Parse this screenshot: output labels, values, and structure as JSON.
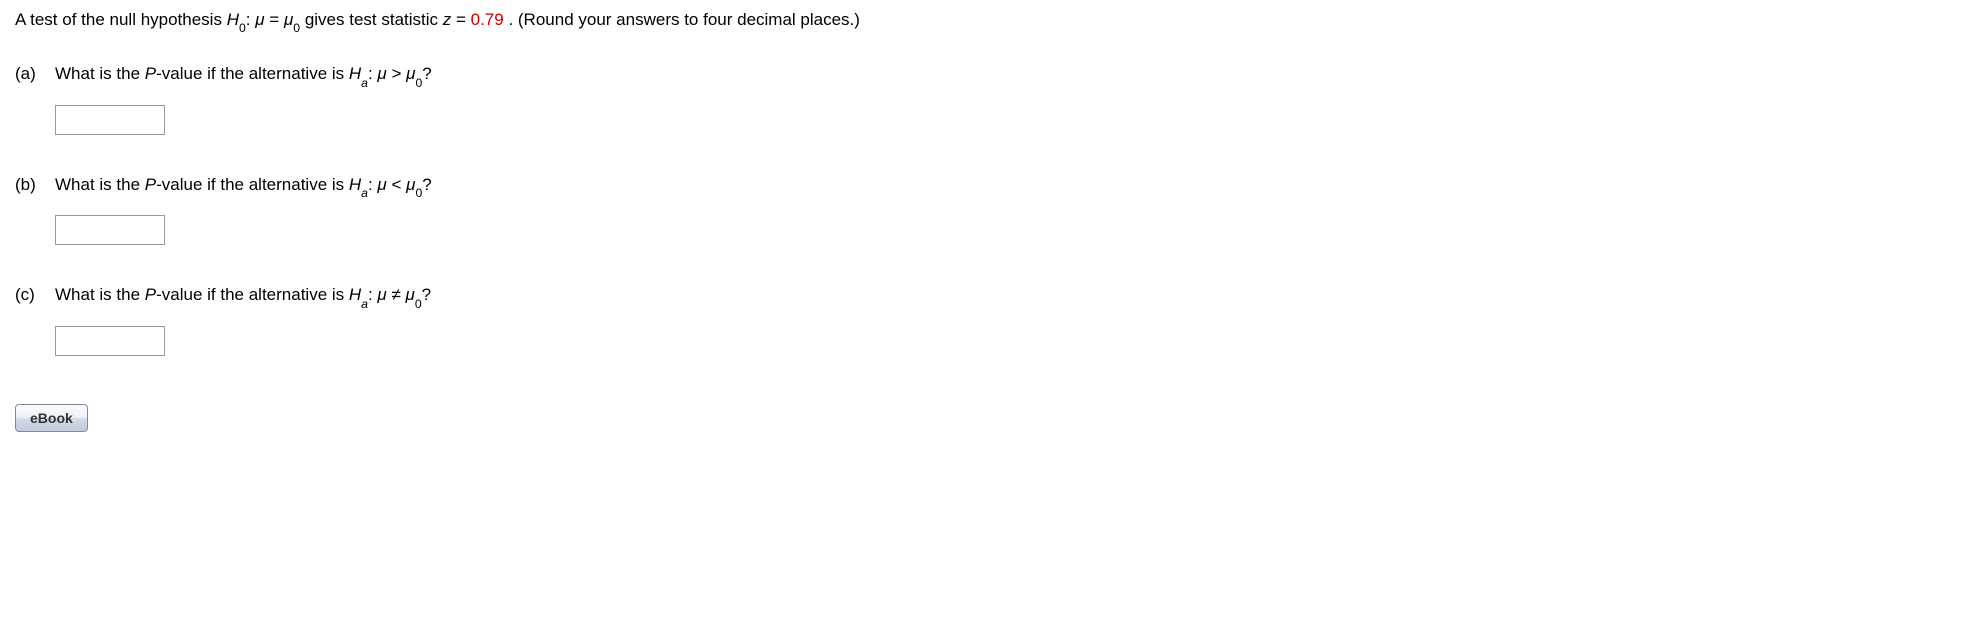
{
  "intro": {
    "pre": "A test of the null hypothesis ",
    "h0_label": "H",
    "h0_sub": "0",
    "colon": ": ",
    "mu": "μ",
    "eq": " = ",
    "mu0": "μ",
    "mu0_sub": "0",
    "mid": " gives test statistic ",
    "zvar": "z",
    "z_eq": " = ",
    "z_val": "0.79",
    "tail": ". (Round your answers to four decimal places.)"
  },
  "parts": {
    "a": {
      "label": "(a)",
      "q_pre": "What is the ",
      "pval": "P",
      "q_mid": "-value if the alternative is ",
      "ha": "H",
      "ha_sub": "a",
      "colon": ": ",
      "mu": "μ",
      "rel": " > ",
      "mu0": "μ",
      "mu0_sub": "0",
      "qmark": "?"
    },
    "b": {
      "label": "(b)",
      "q_pre": "What is the ",
      "pval": "P",
      "q_mid": "-value if the alternative is ",
      "ha": "H",
      "ha_sub": "a",
      "colon": ": ",
      "mu": "μ",
      "rel": " < ",
      "mu0": "μ",
      "mu0_sub": "0",
      "qmark": "?"
    },
    "c": {
      "label": "(c)",
      "q_pre": "What is the ",
      "pval": "P",
      "q_mid": "-value if the alternative is ",
      "ha": "H",
      "ha_sub": "a",
      "colon": ": ",
      "mu": "μ",
      "rel": " ≠ ",
      "mu0": "μ",
      "mu0_sub": "0",
      "qmark": "?"
    }
  },
  "ebook_label": "eBook"
}
